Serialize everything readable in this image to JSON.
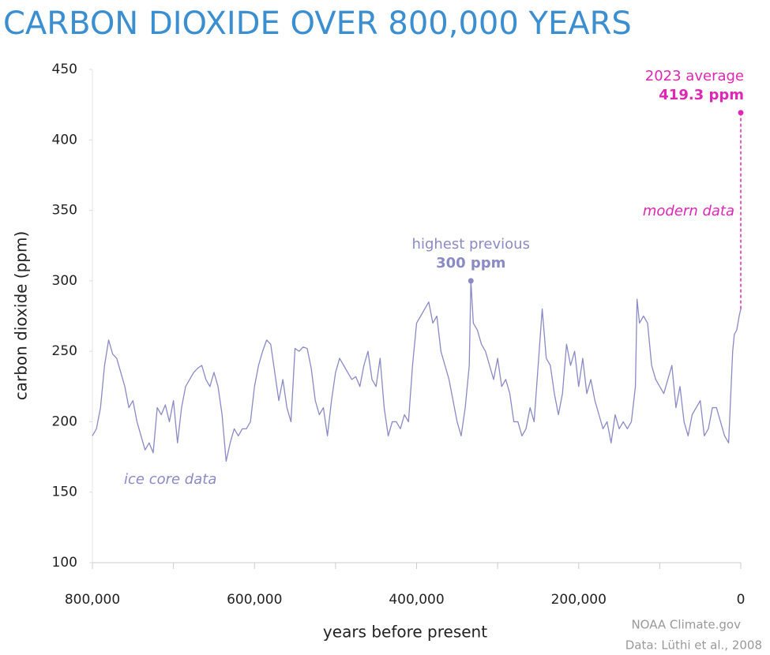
{
  "chart_data": {
    "type": "line",
    "title": "CARBON DIOXIDE OVER 800,000 YEARS",
    "xlabel": "years before present",
    "ylabel": "carbon dioxide (ppm)",
    "source": [
      "NOAA Climate.gov",
      "Data: Lüthi et al., 2008"
    ],
    "xlim": [
      800000,
      0
    ],
    "xticks": [
      {
        "value": 800000,
        "label": "800,000"
      },
      {
        "value": 600000,
        "label": "600,000"
      },
      {
        "value": 400000,
        "label": "400,000"
      },
      {
        "value": 200000,
        "label": "200,000"
      },
      0
    ],
    "xminorticks": [
      700000,
      500000,
      300000,
      100000
    ],
    "ylim": [
      100,
      450
    ],
    "yticks": [
      100,
      150,
      200,
      250,
      300,
      350,
      400,
      450
    ],
    "series": [
      {
        "name": "ice core data",
        "color": "#8a8ac6",
        "dashed": false,
        "x": [
          800000,
          795000,
          790000,
          785000,
          780000,
          775000,
          770000,
          765000,
          760000,
          755000,
          750000,
          745000,
          740000,
          735000,
          730000,
          725000,
          720000,
          715000,
          710000,
          705000,
          700000,
          695000,
          690000,
          685000,
          680000,
          675000,
          670000,
          665000,
          660000,
          655000,
          650000,
          645000,
          640000,
          635000,
          630000,
          625000,
          620000,
          615000,
          610000,
          605000,
          600000,
          595000,
          590000,
          585000,
          580000,
          575000,
          570000,
          565000,
          560000,
          555000,
          550000,
          545000,
          540000,
          535000,
          530000,
          525000,
          520000,
          515000,
          510000,
          505000,
          500000,
          495000,
          490000,
          485000,
          480000,
          475000,
          470000,
          465000,
          460000,
          455000,
          450000,
          445000,
          440000,
          435000,
          430000,
          425000,
          420000,
          415000,
          410000,
          405000,
          400000,
          395000,
          390000,
          385000,
          380000,
          375000,
          370000,
          365000,
          360000,
          355000,
          350000,
          345000,
          340000,
          335000,
          333000,
          330000,
          325000,
          320000,
          315000,
          310000,
          305000,
          300000,
          295000,
          290000,
          285000,
          280000,
          275000,
          270000,
          265000,
          260000,
          255000,
          250000,
          245000,
          240000,
          235000,
          230000,
          225000,
          220000,
          215000,
          210000,
          205000,
          200000,
          195000,
          190000,
          185000,
          180000,
          175000,
          170000,
          165000,
          160000,
          155000,
          150000,
          145000,
          140000,
          135000,
          130000,
          128000,
          125000,
          120000,
          115000,
          110000,
          105000,
          100000,
          95000,
          90000,
          85000,
          80000,
          75000,
          70000,
          65000,
          60000,
          55000,
          50000,
          45000,
          40000,
          35000,
          30000,
          25000,
          20000,
          15000,
          10000,
          8000,
          5000,
          2000,
          0
        ],
        "values": [
          190,
          195,
          210,
          240,
          258,
          248,
          245,
          235,
          225,
          210,
          215,
          200,
          190,
          180,
          185,
          178,
          210,
          205,
          212,
          200,
          215,
          185,
          210,
          225,
          230,
          235,
          238,
          240,
          230,
          225,
          235,
          225,
          205,
          172,
          185,
          195,
          190,
          195,
          195,
          200,
          225,
          240,
          250,
          258,
          255,
          235,
          215,
          230,
          210,
          200,
          252,
          250,
          253,
          252,
          238,
          215,
          205,
          210,
          190,
          215,
          235,
          245,
          240,
          235,
          230,
          232,
          225,
          240,
          250,
          230,
          225,
          245,
          210,
          190,
          200,
          200,
          195,
          205,
          200,
          240,
          270,
          275,
          280,
          285,
          270,
          275,
          250,
          240,
          230,
          215,
          200,
          190,
          210,
          240,
          300,
          270,
          265,
          255,
          250,
          240,
          230,
          245,
          225,
          230,
          220,
          200,
          200,
          190,
          195,
          210,
          200,
          240,
          280,
          245,
          240,
          220,
          205,
          220,
          255,
          240,
          250,
          225,
          245,
          220,
          230,
          215,
          205,
          195,
          200,
          185,
          205,
          195,
          200,
          195,
          200,
          225,
          287,
          270,
          275,
          270,
          240,
          230,
          225,
          220,
          230,
          240,
          210,
          225,
          200,
          190,
          205,
          210,
          215,
          190,
          195,
          210,
          210,
          200,
          190,
          185,
          250,
          262,
          265,
          275,
          280
        ]
      },
      {
        "name": "modern data",
        "color": "#e026b4",
        "dashed": true,
        "x": [
          0,
          0
        ],
        "values": [
          280,
          419.3
        ]
      }
    ],
    "annotations": [
      {
        "text": "highest previous",
        "value_label": "300 ppm",
        "x": 333000,
        "y": 300,
        "color": "#8a8ac6"
      },
      {
        "text": "2023 average",
        "value_label": "419.3 ppm",
        "x": 0,
        "y": 419.3,
        "color": "#e026b4"
      }
    ]
  }
}
